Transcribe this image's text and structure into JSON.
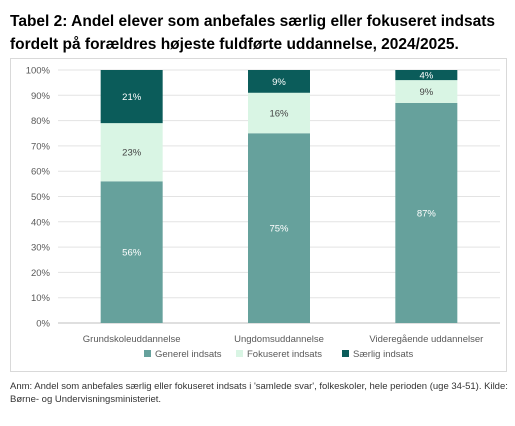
{
  "title": "Tabel 2: Andel elever som anbefales særlig eller fokuseret indsats fordelt på forældres højeste fuldførte uddannelse, 2024/2025.",
  "note": "Anm: Andel som anbefales særlig eller fokuseret indsats i 'samlede svar', folkeskoler, hele perioden (uge 34-51). Kilde: Børne- og Undervisningsministeriet.",
  "chart_data": {
    "type": "bar",
    "stacked": true,
    "categories": [
      "Grundskoleuddannelse",
      "Ungdomsuddannelse",
      "Videregående uddannelser"
    ],
    "series": [
      {
        "name": "Generel indsats",
        "values": [
          56,
          75,
          87
        ],
        "labels": [
          "56%",
          "75%",
          "87%"
        ],
        "color": "#66a19c",
        "label_color": "#ffffff"
      },
      {
        "name": "Fokuseret indsats",
        "values": [
          23,
          16,
          9
        ],
        "labels": [
          "23%",
          "16%",
          "9%"
        ],
        "color": "#d9f5e4",
        "label_color": "#444444"
      },
      {
        "name": "Særlig indsats",
        "values": [
          21,
          9,
          4
        ],
        "labels": [
          "21%",
          "9%",
          "4%"
        ],
        "color": "#0b5c5a",
        "label_color": "#ffffff"
      }
    ],
    "ylim": [
      0,
      100
    ],
    "yticks": [
      "0%",
      "10%",
      "20%",
      "30%",
      "40%",
      "50%",
      "60%",
      "70%",
      "80%",
      "90%",
      "100%"
    ],
    "grid": true,
    "legend": "bottom"
  }
}
